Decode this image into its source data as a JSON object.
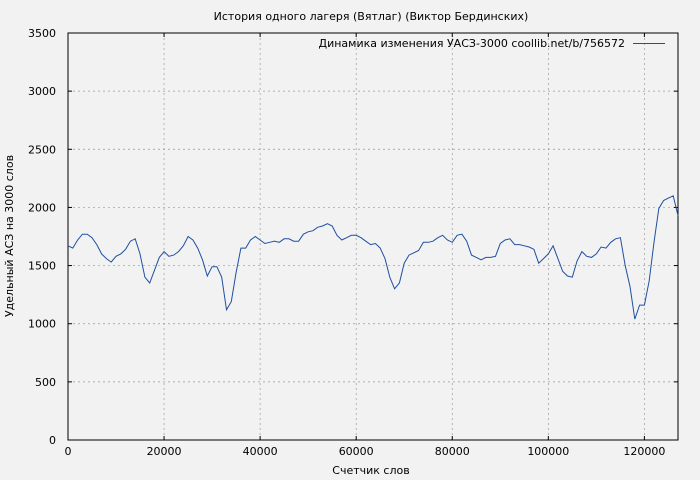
{
  "chart_data": {
    "type": "line",
    "title": "История одного лагеря (Вятлаг) (Виктор Бердинских)",
    "xlabel": "Счетчик слов",
    "ylabel": "Удельный АСЗ на 3000 слов",
    "xlim": [
      0,
      127000
    ],
    "ylim": [
      0,
      3500
    ],
    "xticks": [
      0,
      20000,
      40000,
      60000,
      80000,
      100000,
      120000
    ],
    "yticks": [
      0,
      500,
      1000,
      1500,
      2000,
      2500,
      3000,
      3500
    ],
    "grid": true,
    "legend_position": "top-right",
    "series": [
      {
        "name": "Динамика изменения УАСЗ-3000 coollib.net/b/756572",
        "color": "#1f4fa0",
        "x": [
          0,
          1000,
          2000,
          3000,
          4000,
          5000,
          6000,
          7000,
          8000,
          9000,
          10000,
          11000,
          12000,
          13000,
          14000,
          15000,
          16000,
          17000,
          18000,
          19000,
          20000,
          21000,
          22000,
          23000,
          24000,
          25000,
          26000,
          27000,
          28000,
          29000,
          30000,
          31000,
          32000,
          33000,
          34000,
          35000,
          36000,
          37000,
          38000,
          39000,
          40000,
          41000,
          42000,
          43000,
          44000,
          45000,
          46000,
          47000,
          48000,
          49000,
          50000,
          51000,
          52000,
          53000,
          54000,
          55000,
          56000,
          57000,
          58000,
          59000,
          60000,
          61000,
          62000,
          63000,
          64000,
          65000,
          66000,
          67000,
          68000,
          69000,
          70000,
          71000,
          72000,
          73000,
          74000,
          75000,
          76000,
          77000,
          78000,
          79000,
          80000,
          81000,
          82000,
          83000,
          84000,
          85000,
          86000,
          87000,
          88000,
          89000,
          90000,
          91000,
          92000,
          93000,
          94000,
          95000,
          96000,
          97000,
          98000,
          99000,
          100000,
          101000,
          102000,
          103000,
          104000,
          105000,
          106000,
          107000,
          108000,
          109000,
          110000,
          111000,
          112000,
          113000,
          114000,
          115000,
          116000,
          117000,
          118000,
          119000,
          120000,
          121000,
          122000,
          123000,
          124000,
          125000,
          126000,
          127000
        ],
        "y": [
          1670,
          1650,
          1720,
          1770,
          1770,
          1740,
          1680,
          1600,
          1560,
          1530,
          1580,
          1600,
          1640,
          1710,
          1730,
          1600,
          1400,
          1350,
          1460,
          1570,
          1620,
          1580,
          1590,
          1620,
          1670,
          1750,
          1720,
          1650,
          1550,
          1410,
          1490,
          1490,
          1400,
          1120,
          1190,
          1440,
          1650,
          1650,
          1720,
          1750,
          1720,
          1690,
          1700,
          1710,
          1700,
          1730,
          1730,
          1710,
          1710,
          1770,
          1790,
          1800,
          1830,
          1840,
          1860,
          1840,
          1760,
          1720,
          1740,
          1760,
          1760,
          1740,
          1710,
          1680,
          1690,
          1650,
          1560,
          1400,
          1300,
          1350,
          1520,
          1590,
          1610,
          1630,
          1700,
          1700,
          1710,
          1740,
          1760,
          1720,
          1700,
          1760,
          1770,
          1710,
          1590,
          1570,
          1550,
          1570,
          1570,
          1580,
          1690,
          1720,
          1730,
          1680,
          1680,
          1670,
          1660,
          1640,
          1520,
          1560,
          1600,
          1670,
          1560,
          1450,
          1410,
          1400,
          1540,
          1620,
          1580,
          1570,
          1600,
          1660,
          1650,
          1700,
          1730,
          1740,
          1500,
          1320,
          1040,
          1160,
          1160,
          1370,
          1700,
          1990,
          2060,
          2080,
          2100,
          1930
        ]
      }
    ]
  }
}
